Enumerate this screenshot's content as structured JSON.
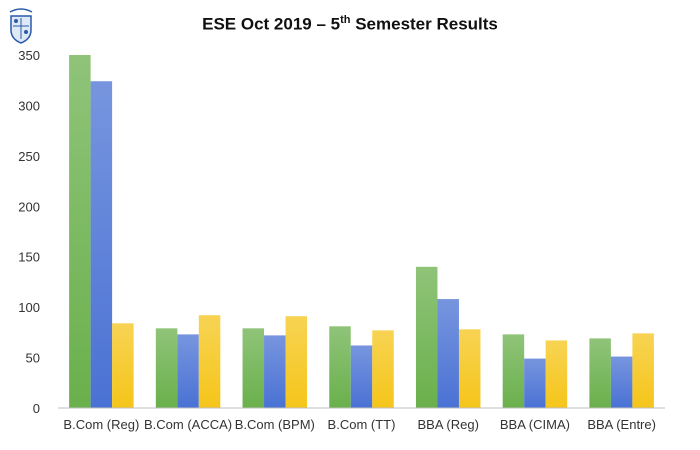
{
  "chart_data": {
    "type": "bar",
    "title": {
      "main": "ESE Oct 2019 – 5",
      "sup": "th",
      "rest": " Semester Results"
    },
    "categories": [
      "B.Com (Reg)",
      "B.Com (ACCA)",
      "B.Com (BPM)",
      "B.Com (TT)",
      "BBA (Reg)",
      "BBA (CIMA)",
      "BBA (Entre)"
    ],
    "series": [
      {
        "values": [
          350,
          79,
          79,
          81,
          140,
          73,
          69
        ],
        "color": "#6ab04c"
      },
      {
        "values": [
          324,
          73,
          72,
          62,
          108,
          49,
          51
        ],
        "color": "#4a72d4"
      },
      {
        "values": [
          84,
          92,
          91,
          77,
          78,
          67,
          74
        ],
        "color": "#f5c51a"
      }
    ],
    "ylim": [
      0,
      350
    ],
    "yticks": [
      0,
      50,
      100,
      150,
      200,
      250,
      300,
      350
    ],
    "xlabel": "",
    "ylabel": "",
    "grid": false,
    "legend": "none"
  },
  "logo": {
    "icon": "college-crest-icon",
    "color": "#2a5aa8"
  }
}
